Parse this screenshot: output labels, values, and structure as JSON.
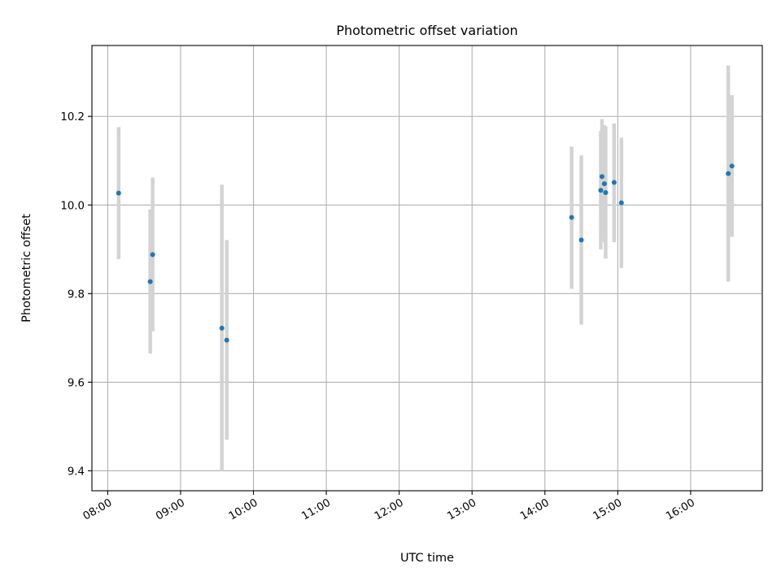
{
  "chart_data": {
    "type": "scatter",
    "title": "Photometric offset variation",
    "xlabel": "UTC time",
    "ylabel": "Photometric offset",
    "x_ticks": [
      "08:00",
      "09:00",
      "10:00",
      "11:00",
      "12:00",
      "13:00",
      "14:00",
      "15:00",
      "16:00"
    ],
    "y_ticks": [
      "9.4",
      "9.6",
      "9.8",
      "10.0",
      "10.2"
    ],
    "xlim": [
      "07:47",
      "16:59"
    ],
    "ylim": [
      9.355,
      10.36
    ],
    "grid": true,
    "point_color": "#1f77b4",
    "errorbar_color": "#d3d3d3",
    "points": [
      {
        "x": "08:09",
        "y": 10.027,
        "y_low": 9.878,
        "y_high": 10.176
      },
      {
        "x": "08:35",
        "y": 9.827,
        "y_low": 9.665,
        "y_high": 9.99
      },
      {
        "x": "08:37",
        "y": 9.888,
        "y_low": 9.715,
        "y_high": 10.062
      },
      {
        "x": "09:34",
        "y": 9.722,
        "y_low": 9.4,
        "y_high": 10.046
      },
      {
        "x": "09:38",
        "y": 9.695,
        "y_low": 9.47,
        "y_high": 9.921
      },
      {
        "x": "14:22",
        "y": 9.972,
        "y_low": 9.811,
        "y_high": 10.132
      },
      {
        "x": "14:30",
        "y": 9.921,
        "y_low": 9.73,
        "y_high": 10.112
      },
      {
        "x": "14:46",
        "y": 10.033,
        "y_low": 9.9,
        "y_high": 10.167
      },
      {
        "x": "14:47",
        "y": 10.064,
        "y_low": 9.935,
        "y_high": 10.194
      },
      {
        "x": "14:49",
        "y": 10.048,
        "y_low": 9.916,
        "y_high": 10.18
      },
      {
        "x": "14:50",
        "y": 10.028,
        "y_low": 9.879,
        "y_high": 10.177
      },
      {
        "x": "14:57",
        "y": 10.051,
        "y_low": 9.916,
        "y_high": 10.184
      },
      {
        "x": "15:03",
        "y": 10.005,
        "y_low": 9.858,
        "y_high": 10.152
      },
      {
        "x": "16:31",
        "y": 10.071,
        "y_low": 9.827,
        "y_high": 10.315
      },
      {
        "x": "16:34",
        "y": 10.088,
        "y_low": 9.928,
        "y_high": 10.248
      }
    ]
  }
}
